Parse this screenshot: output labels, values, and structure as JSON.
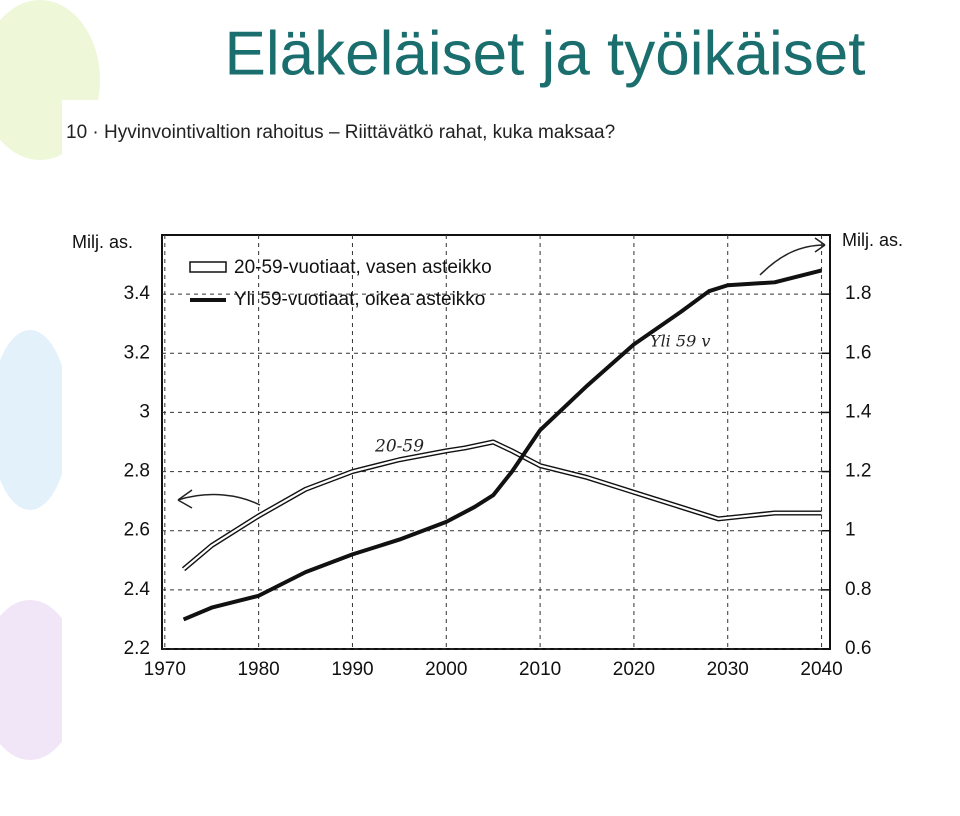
{
  "slide_title": "Eläkeläiset ja työikäiset",
  "chart_data": {
    "type": "line",
    "title": "10 · Hyvinvointivaltion rahoitus – Riittävätkö rahat, kuka maksaa?",
    "y_label": "Milj. as.",
    "y2_label": "Milj. as.",
    "xlim": [
      1969.7,
      2040.9
    ],
    "xticks": [
      1970,
      1980,
      1990,
      2000,
      2010,
      2020,
      2030,
      2040
    ],
    "ylim": [
      2.2,
      3.6
    ],
    "yticks": [
      2.2,
      2.4,
      2.6,
      2.8,
      3,
      3.2,
      3.4
    ],
    "y2lim": [
      0.6,
      2.0
    ],
    "y2ticks": [
      0.6,
      0.8,
      1,
      1.2,
      1.4,
      1.6,
      1.8
    ],
    "grid": true,
    "legend": "top-left",
    "series": [
      {
        "name": "20-59-vuotiaat, vasen asteikko",
        "color": "#111111",
        "style": "double",
        "x": [
          1972,
          1975,
          1980,
          1985,
          1990,
          1995,
          2000,
          2002,
          2005,
          2007,
          2010,
          2015,
          2020,
          2025,
          2029,
          2032,
          2035,
          2040
        ],
        "values": [
          2.47,
          2.55,
          2.65,
          2.74,
          2.8,
          2.84,
          2.87,
          2.88,
          2.9,
          2.87,
          2.82,
          2.78,
          2.73,
          2.68,
          2.64,
          2.65,
          2.66,
          2.66
        ]
      },
      {
        "name": "Yli 59-vuotiaat, oikea asteikko",
        "color": "#111111",
        "style": "solid",
        "axis": "y2",
        "x": [
          1972,
          1975,
          1980,
          1985,
          1990,
          1995,
          2000,
          2003,
          2005,
          2007,
          2010,
          2015,
          2020,
          2025,
          2028,
          2030,
          2035,
          2040
        ],
        "values": [
          0.7,
          0.74,
          0.78,
          0.86,
          0.92,
          0.97,
          1.03,
          1.08,
          1.12,
          1.2,
          1.34,
          1.49,
          1.63,
          1.74,
          1.81,
          1.83,
          1.84,
          1.88
        ]
      }
    ],
    "annotations": [
      "20-59",
      "Yli 59 v"
    ]
  }
}
